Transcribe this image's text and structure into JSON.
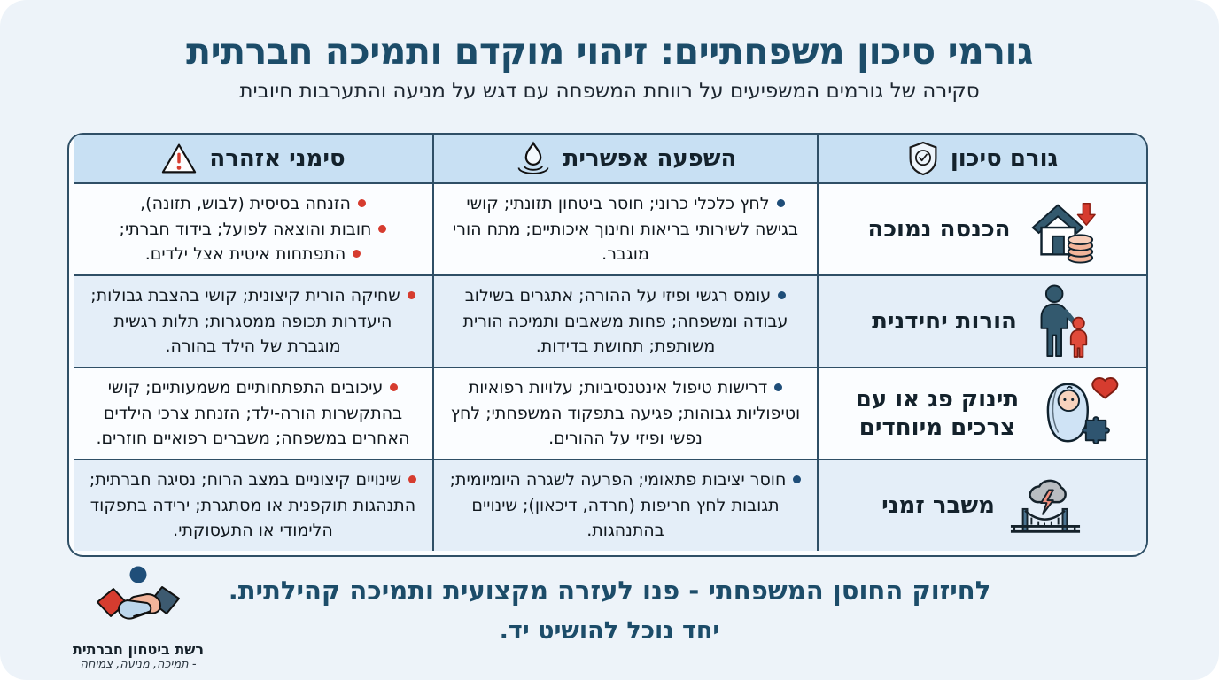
{
  "page": {
    "title": "גורמי סיכון משפחתיים: זיהוי מוקדם ותמיכה חברתית",
    "subtitle": "סקירה של גורמים המשפיעים על רווחת המשפחה עם דגש על מניעה והתערבות חיובית"
  },
  "table": {
    "headers": [
      {
        "label": "גורם סיכון",
        "icon": "shield-check-icon"
      },
      {
        "label": "השפעה אפשרית",
        "icon": "water-drop-icon"
      },
      {
        "label": "סימני אזהרה",
        "icon": "warning-triangle-icon"
      }
    ],
    "rows": [
      {
        "factor": "הכנסה נמוכה",
        "icon": "house-income-down-icon",
        "effects": [
          "לחץ כלכלי כרוני; חוסר ביטחון תזונתי; קושי בגישה לשירותי בריאות וחינוך איכותיים; מתח הורי מוגבר."
        ],
        "warnings": [
          "הזנחה בסיסית (לבוש, תזונה),",
          "חובות והוצאה לפועל; בידוד חברתי;",
          "התפתחות איטית אצל ילדים."
        ]
      },
      {
        "factor": "הורות יחידנית",
        "icon": "single-parent-icon",
        "effects": [
          "עומס רגשי ופיזי על ההורה; אתגרים בשילוב עבודה ומשפחה; פחות משאבים ותמיכה הורית משותפת; תחושת בדידות."
        ],
        "warnings": [
          "שחיקה הורית קיצונית; קושי בהצבת גבולות; היעדרות תכופה ממסגרות; תלות רגשית מוגברת של הילד בהורה."
        ]
      },
      {
        "factor": "תינוק פג או עם צרכים מיוחדים",
        "icon": "baby-special-needs-icon",
        "effects": [
          "דרישות טיפול אינטנסיביות; עלויות רפואיות וטיפוליות גבוהות; פגיעה בתפקוד המשפחתי; לחץ נפשי ופיזי על ההורים."
        ],
        "warnings": [
          "עיכובים התפתחותיים משמעותיים; קושי בהתקשרות הורה-ילד; הזנחת צרכי הילדים האחרים במשפחה; משברים רפואיים חוזרים."
        ]
      },
      {
        "factor": "משבר זמני",
        "icon": "storm-bridge-icon",
        "effects": [
          "חוסר יציבות פתאומי; הפרעה לשגרה היומיומית; תגובות לחץ חריפות (חרדה, דיכאון); שינויים בהתנהגות."
        ],
        "warnings": [
          "שינויים קיצוניים במצב הרוח; נסיגה חברתית; התנהגות תוקפנית או מסתגרת; ירידה בתפקוד הלימודי או התעסוקתי."
        ]
      }
    ]
  },
  "footer": {
    "line1": "לחיזוק החוסן המשפחתי - פנו לעזרה מקצועית ותמיכה קהילתית.",
    "line2": "יחד נוכל להושיט יד.",
    "logo_icon": "handshake-icon",
    "logo_title": "רשת ביטחון חברתית",
    "logo_subtitle": "- תמיכה, מניעה, צמיחה"
  },
  "colors": {
    "navy": "#1c4c69",
    "line": "#2f4f66",
    "header_bg": "#c8e0f3",
    "row_alt_bg": "#e4eef8",
    "page_bg": "#edf3f9",
    "red": "#d63c2f",
    "blue": "#1f4e79"
  }
}
